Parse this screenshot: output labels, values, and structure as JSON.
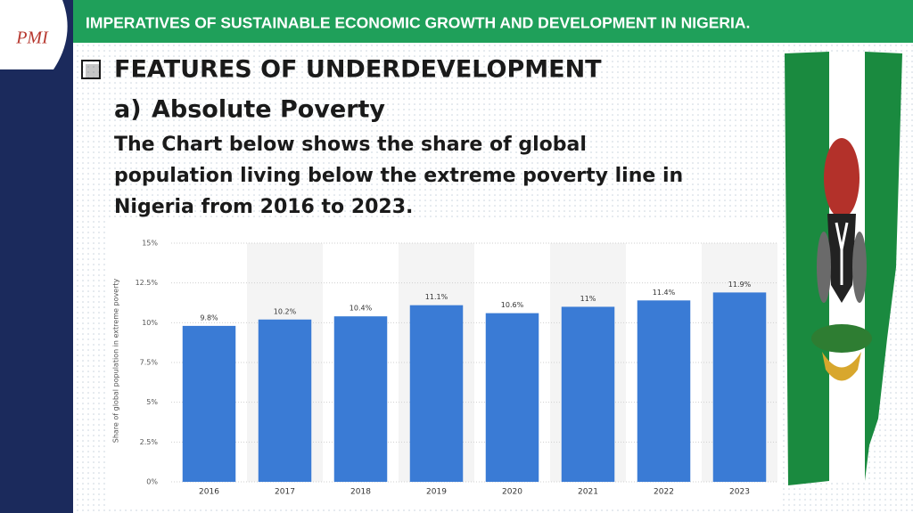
{
  "logo": "PMI",
  "header": {
    "title": "IMPERATIVES OF SUSTAINABLE ECONOMIC GROWTH AND DEVELOPMENT IN NIGERIA."
  },
  "section": {
    "heading": "FEATURES OF UNDERDEVELOPMENT",
    "item_marker": "a)",
    "item_title": "Absolute Poverty",
    "paragraph": [
      "The Chart below shows the share of global",
      "population living below the extreme poverty line in",
      "Nigeria from 2016 to 2023."
    ]
  },
  "chart_data": {
    "type": "bar",
    "y_label": "Share of global population in extreme poverty",
    "categories": [
      "2016",
      "2017",
      "2018",
      "2019",
      "2020",
      "2021",
      "2022",
      "2023"
    ],
    "values": [
      9.8,
      10.2,
      10.4,
      11.1,
      10.6,
      11,
      11.4,
      11.9
    ],
    "value_labels": [
      "9.8%",
      "10.2%",
      "10.4%",
      "11.1%",
      "10.6%",
      "11%",
      "11.4%",
      "11.9%"
    ],
    "color": "#3a7bd5",
    "ylim": [
      0,
      15
    ],
    "yticks": [
      {
        "value": 0,
        "label": "0%"
      },
      {
        "value": 2.5,
        "label": "2.5%"
      },
      {
        "value": 5,
        "label": "5%"
      },
      {
        "value": 7.5,
        "label": "7.5%"
      },
      {
        "value": 10,
        "label": "10%"
      },
      {
        "value": 12.5,
        "label": "12.5%"
      },
      {
        "value": 15,
        "label": "15%"
      }
    ],
    "grid": true
  }
}
